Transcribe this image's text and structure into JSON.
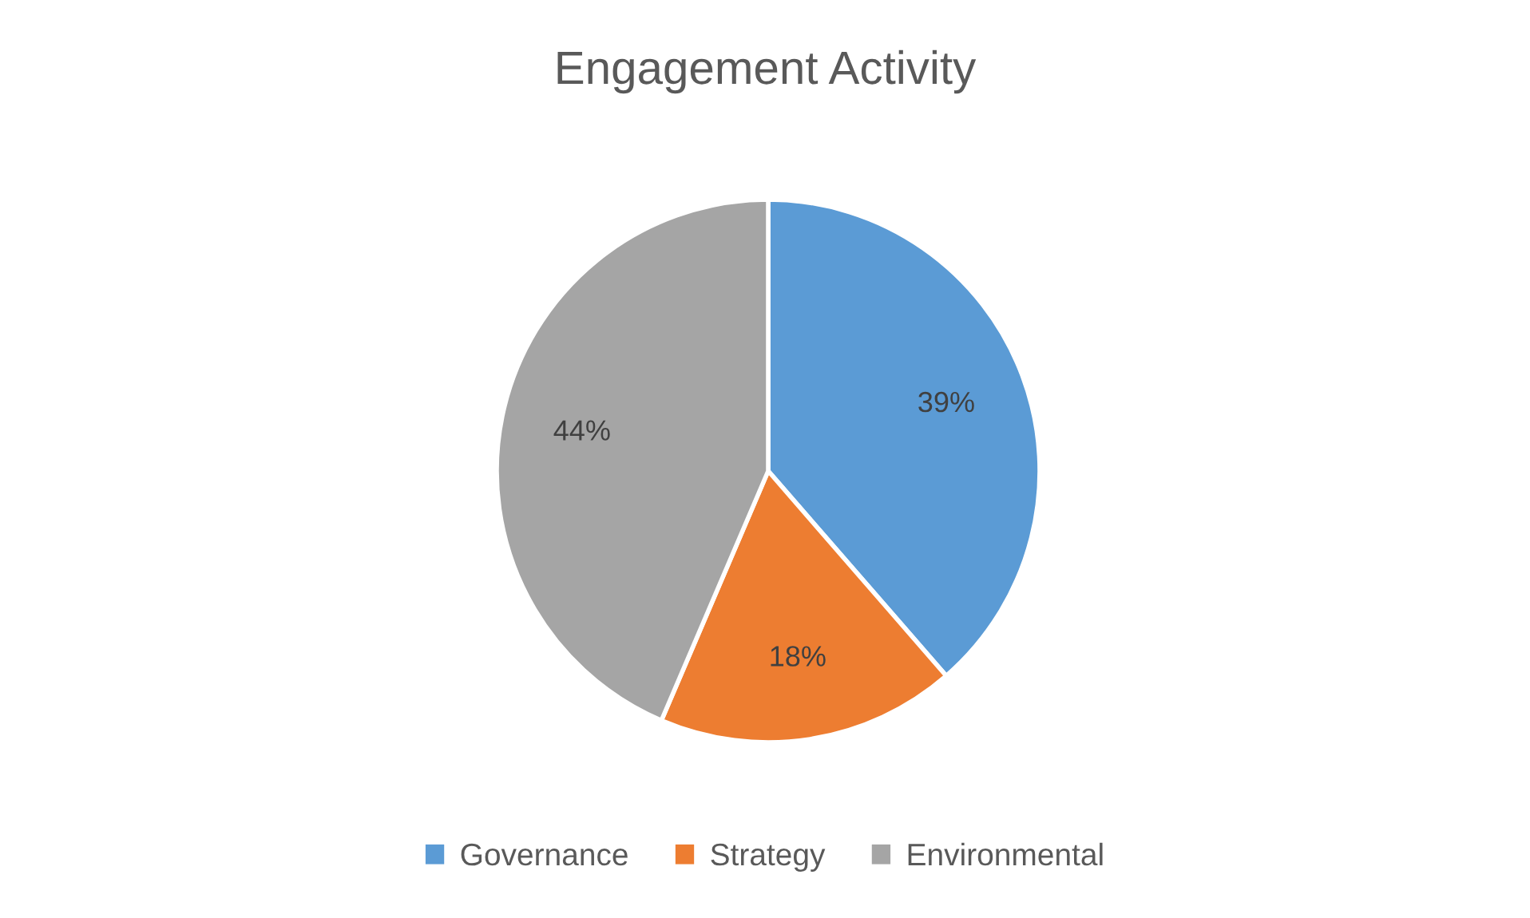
{
  "chart_data": {
    "type": "pie",
    "title": "Engagement Activity",
    "categories": [
      "Governance",
      "Strategy",
      "Environmental"
    ],
    "values": [
      39,
      18,
      44
    ],
    "value_labels": [
      "39%",
      "18%",
      "44%"
    ],
    "colors": [
      "#5b9bd5",
      "#ed7d31",
      "#a5a5a5"
    ],
    "legend": "bottom"
  }
}
